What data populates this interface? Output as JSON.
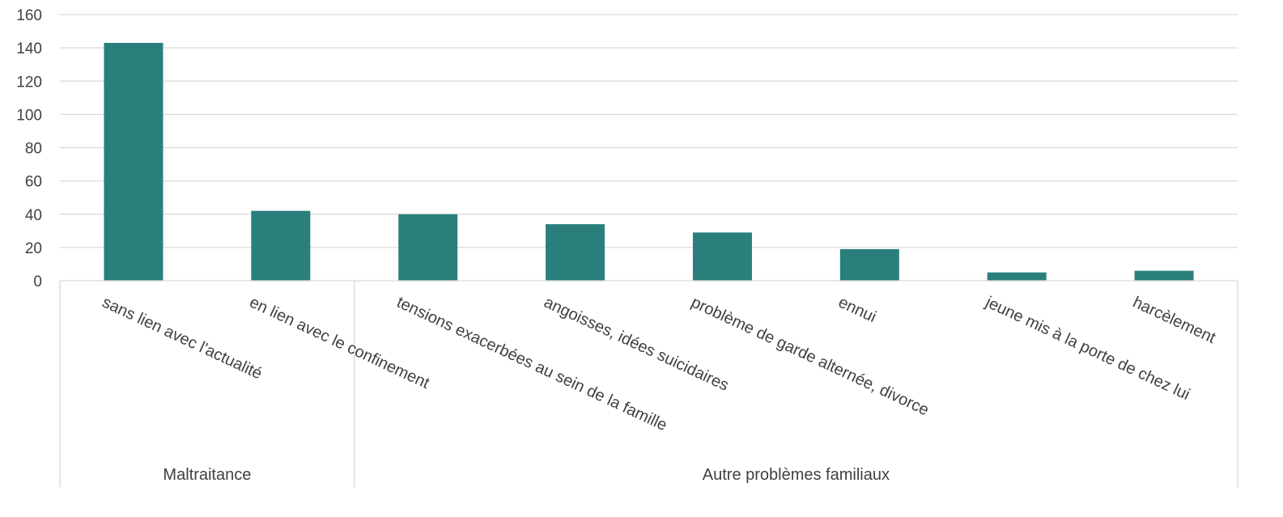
{
  "chart_data": {
    "type": "bar",
    "title": "",
    "xlabel": "",
    "ylabel": "",
    "ylim": [
      0,
      160
    ],
    "yticks": [
      0,
      20,
      40,
      60,
      80,
      100,
      120,
      140,
      160
    ],
    "grid": true,
    "bar_color": "#2a7f7c",
    "grid_color": "#d9d9d9",
    "text_color": "#404040",
    "categories": [
      "sans lien avec l'actualité",
      "en lien avec le confinement",
      "tensions exacerbées au sein de la famille",
      "angoisses, idées suicidaires",
      "problème de garde alternée, divorce",
      "ennui",
      "jeune mis à la porte de chez lui",
      "harcèlement"
    ],
    "values": [
      143,
      42,
      40,
      34,
      29,
      19,
      5,
      6
    ],
    "groups": [
      {
        "label": "Maltraitance",
        "count": 2
      },
      {
        "label": "Autre problèmes familiaux",
        "count": 6
      }
    ]
  }
}
